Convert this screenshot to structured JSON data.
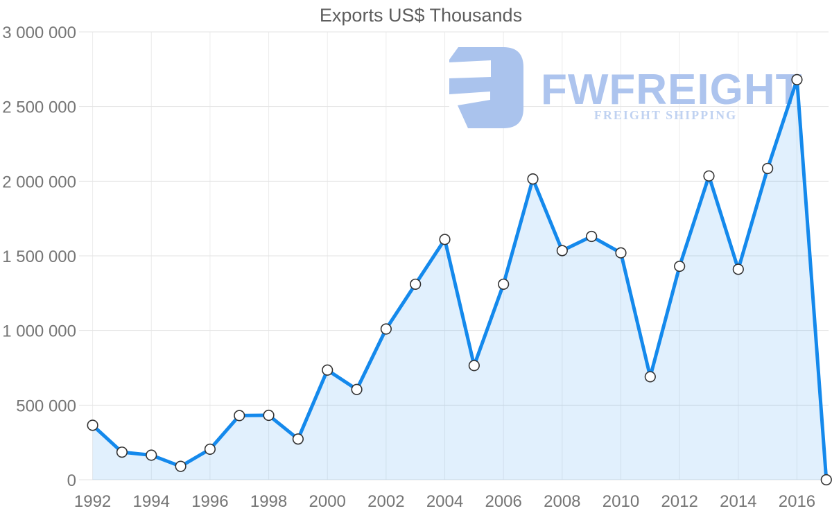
{
  "watermark": {
    "brand": "FWFREIGHT",
    "tagline": "FREIGHT SHIPPING",
    "logo_color": "#aac3ed",
    "brand_color": "#adc4ee",
    "tagline_color": "#c0d2f1"
  },
  "chart_data": {
    "type": "area",
    "title": "Exports US$ Thousands",
    "xlabel": "",
    "ylabel": "",
    "x": [
      1992,
      1993,
      1994,
      1995,
      1996,
      1997,
      1998,
      1999,
      2000,
      2001,
      2002,
      2003,
      2004,
      2005,
      2006,
      2007,
      2008,
      2009,
      2010,
      2011,
      2012,
      2013,
      2014,
      2015,
      2016,
      2017
    ],
    "series": [
      {
        "name": "Exports US$ Thousands",
        "values": [
          365000,
          185000,
          165000,
          90000,
          205000,
          430000,
          432000,
          273000,
          735000,
          605000,
          1010000,
          1310000,
          1610000,
          765000,
          1310000,
          2015000,
          1535000,
          1630000,
          1520000,
          690000,
          1430000,
          2035000,
          1410000,
          2085000,
          2680000,
          0
        ]
      }
    ],
    "xlim": [
      1992,
      2017
    ],
    "ylim": [
      0,
      3000000
    ],
    "x_ticks": [
      {
        "value": 1992,
        "label": "1992"
      },
      {
        "value": 1994,
        "label": "1994"
      },
      {
        "value": 1996,
        "label": "1996"
      },
      {
        "value": 1998,
        "label": "1998"
      },
      {
        "value": 2000,
        "label": "2000"
      },
      {
        "value": 2002,
        "label": "2002"
      },
      {
        "value": 2004,
        "label": "2004"
      },
      {
        "value": 2006,
        "label": "2006"
      },
      {
        "value": 2008,
        "label": "2008"
      },
      {
        "value": 2010,
        "label": "2010"
      },
      {
        "value": 2012,
        "label": "2012"
      },
      {
        "value": 2014,
        "label": "2014"
      },
      {
        "value": 2016,
        "label": "2016"
      }
    ],
    "y_ticks": [
      {
        "value": 0,
        "label": "0"
      },
      {
        "value": 500000,
        "label": "500 000"
      },
      {
        "value": 1000000,
        "label": "1 000 000"
      },
      {
        "value": 1500000,
        "label": "1 500 000"
      },
      {
        "value": 2000000,
        "label": "2 000 000"
      },
      {
        "value": 2500000,
        "label": "2 500 000"
      },
      {
        "value": 3000000,
        "label": "3 000 000"
      }
    ],
    "grid": true,
    "legend": "none",
    "colors": {
      "line": "#1489ec",
      "fill": "rgba(20,137,236,0.13)",
      "marker_fill": "#ffffff",
      "marker_stroke": "#333333",
      "grid_h": "#e3e3e3",
      "grid_v": "#ececec",
      "tick_text": "#757575",
      "title_text": "#5d5d5d"
    }
  }
}
